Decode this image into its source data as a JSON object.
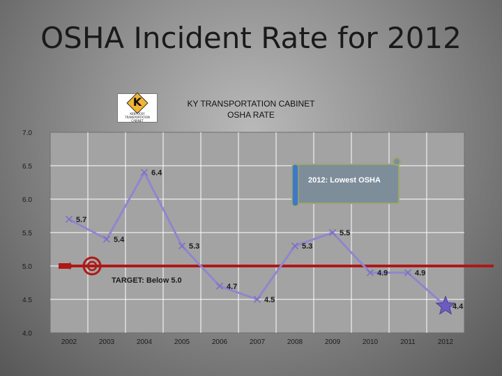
{
  "slide": {
    "title": "OSHA Incident Rate for 2012"
  },
  "logo": {
    "letter": "K",
    "text": "KENTUCKY TRANSPORTATION CABINET"
  },
  "chart_data": {
    "type": "line",
    "title_lines": [
      "KY TRANSPORTATION CABINET",
      "OSHA RATE"
    ],
    "xlabel": "",
    "ylabel": "",
    "x": [
      "2002",
      "2003",
      "2004",
      "2005",
      "2006",
      "2007",
      "2008",
      "2009",
      "2010",
      "2011",
      "2012"
    ],
    "series": [
      {
        "values": [
          5.7,
          5.4,
          6.4,
          5.3,
          4.7,
          4.5,
          5.3,
          5.5,
          4.9,
          4.9,
          4.4
        ]
      }
    ],
    "data_labels": [
      "5.7",
      "5.4",
      "6.4",
      "5.3",
      "4.7",
      "4.5",
      "5.3",
      "5.5",
      "4.9",
      "4.9",
      "4.4"
    ],
    "ylim": [
      4.0,
      7.0
    ],
    "yticks": [
      "4.0",
      "4.5",
      "5.0",
      "5.5",
      "6.0",
      "6.5",
      "7.0"
    ],
    "grid": true,
    "legend": "none",
    "target": {
      "value": 5.0,
      "label": "TARGET: Below 5.0",
      "color": "#b01717"
    },
    "callout": "2012: Lowest OSHA",
    "colors": {
      "line": "#8f86cf",
      "marker": "#7a70c4",
      "star": "#6d5cc0",
      "plot_bg": "#a3a3a3",
      "grid": "#ffffff",
      "callout_bg": "#7e8d9a"
    }
  }
}
